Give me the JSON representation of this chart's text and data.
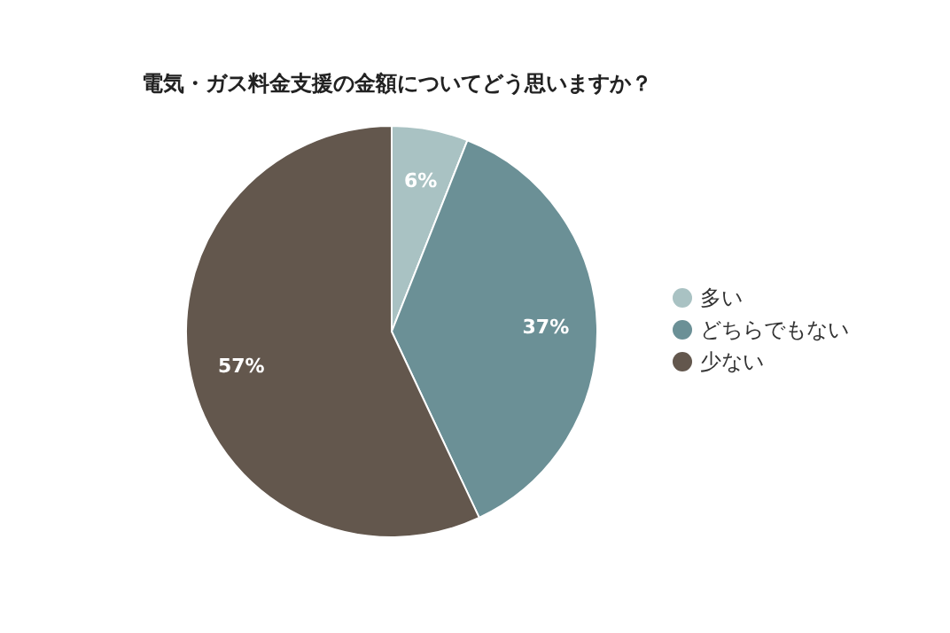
{
  "chart_data": {
    "type": "pie",
    "title": "電気・ガス料金支援の金額についてどう思いますか？",
    "categories": [
      "多い",
      "どちらでもない",
      "少ない"
    ],
    "values": [
      6,
      37,
      57
    ],
    "colors": [
      "#a9c2c3",
      "#6b9096",
      "#63574d"
    ],
    "value_labels": [
      "6%",
      "37%",
      "57%"
    ],
    "legend": "right"
  }
}
